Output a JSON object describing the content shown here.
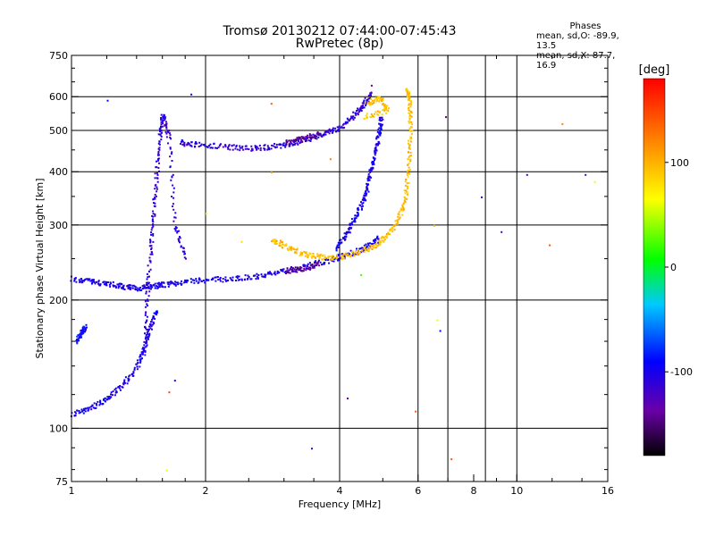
{
  "chart_data": {
    "type": "scatter",
    "title": "Tromsø 20130212 07:44:00-07:45:43",
    "subtitle": "RwPretec (8p)",
    "xlabel": "Frequency [MHz]",
    "ylabel": "Stationary phase Virtual Height [km]",
    "xscale": "log",
    "yscale": "log",
    "xlim": [
      1,
      16
    ],
    "ylim": [
      75,
      750
    ],
    "xticks": [
      "1",
      "2",
      "4",
      "6",
      "8",
      "10",
      "16"
    ],
    "yticks": [
      "75",
      "100",
      "200",
      "300",
      "400",
      "500",
      "600",
      "750"
    ],
    "xgrid": [
      2,
      4,
      6,
      7,
      8.5,
      10
    ],
    "ygrid": [
      100,
      200,
      300,
      400,
      500,
      600
    ],
    "grid": true,
    "stats": {
      "header": "Phases",
      "line_o": "mean, sd,O: -89.9, 13.5",
      "line_x": "mean, sd,X:  87.7, 16.9"
    },
    "colorbar": {
      "label": "[deg]",
      "ticks": [
        "100",
        "0",
        "-100"
      ],
      "range": [
        -180,
        180
      ]
    },
    "series": [
      {
        "points": [
          [
            1.0,
            225
          ],
          [
            1.1,
            222
          ],
          [
            1.2,
            219
          ],
          [
            1.3,
            216
          ],
          [
            1.4,
            214
          ],
          [
            1.5,
            216
          ],
          [
            1.6,
            218
          ],
          [
            1.75,
            221
          ],
          [
            2.0,
            224
          ],
          [
            2.3,
            225
          ],
          [
            2.6,
            228
          ],
          [
            2.9,
            233
          ],
          [
            3.3,
            240
          ],
          [
            3.7,
            248
          ],
          [
            4.0,
            254
          ],
          [
            4.3,
            260
          ],
          [
            4.6,
            268
          ],
          [
            4.9,
            280
          ]
        ],
        "phase": -100
      },
      {
        "points": [
          [
            1.45,
            150
          ],
          [
            1.47,
            200
          ],
          [
            1.5,
            260
          ],
          [
            1.52,
            320
          ],
          [
            1.55,
            400
          ],
          [
            1.58,
            500
          ],
          [
            1.6,
            550
          ],
          [
            1.65,
            480
          ],
          [
            1.7,
            300
          ],
          [
            1.8,
            250
          ]
        ],
        "phase": -110
      },
      {
        "points": [
          [
            1.0,
            108
          ],
          [
            1.1,
            112
          ],
          [
            1.2,
            118
          ],
          [
            1.3,
            127
          ],
          [
            1.4,
            140
          ],
          [
            1.45,
            155
          ],
          [
            1.5,
            175
          ],
          [
            1.55,
            190
          ]
        ],
        "phase": -100
      },
      {
        "points": [
          [
            1.02,
            160
          ],
          [
            1.05,
            168
          ],
          [
            1.07,
            175
          ]
        ],
        "phase": -90
      },
      {
        "points": [
          [
            1.75,
            470
          ],
          [
            1.9,
            465
          ],
          [
            2.2,
            460
          ],
          [
            2.5,
            455
          ],
          [
            2.8,
            460
          ],
          [
            3.1,
            468
          ],
          [
            3.4,
            480
          ],
          [
            3.7,
            495
          ],
          [
            4.0,
            510
          ],
          [
            4.3,
            545
          ],
          [
            4.5,
            575
          ],
          [
            4.7,
            615
          ]
        ],
        "phase": -110
      },
      {
        "points": [
          [
            3.9,
            265
          ],
          [
            4.1,
            285
          ],
          [
            4.3,
            310
          ],
          [
            4.5,
            340
          ],
          [
            4.6,
            370
          ],
          [
            4.7,
            410
          ],
          [
            4.8,
            450
          ],
          [
            4.9,
            500
          ],
          [
            4.95,
            540
          ]
        ],
        "phase": -100
      },
      {
        "points": [
          [
            2.8,
            280
          ],
          [
            3.0,
            268
          ],
          [
            3.3,
            258
          ],
          [
            3.6,
            253
          ],
          [
            4.0,
            253
          ],
          [
            4.4,
            260
          ],
          [
            4.8,
            270
          ],
          [
            5.1,
            285
          ],
          [
            5.4,
            310
          ],
          [
            5.6,
            350
          ],
          [
            5.7,
            420
          ],
          [
            5.75,
            500
          ],
          [
            5.72,
            580
          ],
          [
            5.65,
            630
          ]
        ],
        "phase": 95
      },
      {
        "points": [
          [
            4.6,
            580
          ],
          [
            4.9,
            600
          ],
          [
            5.1,
            560
          ],
          [
            4.5,
            540
          ]
        ],
        "phase": 95
      },
      {
        "points": [
          [
            3.0,
            235
          ],
          [
            3.3,
            238
          ],
          [
            3.6,
            245
          ]
        ],
        "phase": -140
      },
      {
        "points": [
          [
            3.0,
            470
          ],
          [
            3.3,
            480
          ],
          [
            3.6,
            495
          ]
        ],
        "phase": -140
      }
    ],
    "noise": [
      [
        1.2,
        590,
        -90
      ],
      [
        1.85,
        610,
        -110
      ],
      [
        2.8,
        580,
        140
      ],
      [
        2.8,
        400,
        100
      ],
      [
        3.8,
        430,
        120
      ],
      [
        4.7,
        640,
        -140
      ],
      [
        6.5,
        300,
        100
      ],
      [
        6.7,
        170,
        -90
      ],
      [
        6.9,
        540,
        -140
      ],
      [
        7.1,
        85,
        140
      ],
      [
        8.3,
        350,
        -120
      ],
      [
        9.2,
        290,
        -120
      ],
      [
        10.5,
        395,
        -120
      ],
      [
        11.8,
        270,
        140
      ],
      [
        12.6,
        520,
        120
      ],
      [
        14.2,
        395,
        -120
      ],
      [
        14.9,
        380,
        60
      ],
      [
        5.9,
        110,
        140
      ],
      [
        6.6,
        180,
        60
      ],
      [
        2.4,
        275,
        80
      ],
      [
        2.0,
        320,
        60
      ],
      [
        3.45,
        90,
        -120
      ],
      [
        4.15,
        118,
        -140
      ],
      [
        4.45,
        230,
        20
      ],
      [
        1.7,
        130,
        -100
      ],
      [
        1.65,
        122,
        150
      ],
      [
        1.63,
        80,
        60
      ]
    ]
  }
}
